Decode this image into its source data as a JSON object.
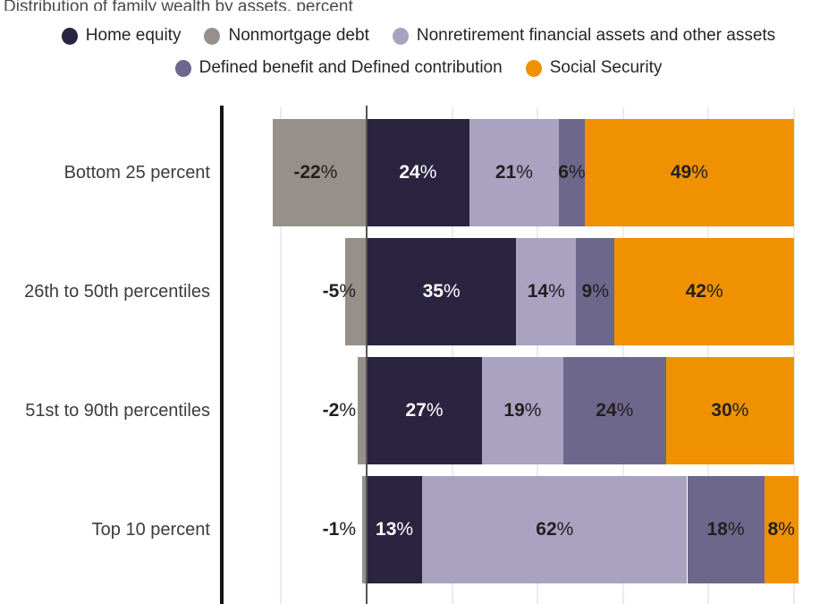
{
  "title": "Distribution of family wealth by assets, percent",
  "colors": {
    "home_equity": "#2a2440",
    "nonmortgage_debt": "#97908a",
    "nonretirement_assets": "#a9a3c1",
    "defined_benefit_contribution": "#6e678c",
    "social_security": "#ef9100",
    "axis": "#151515",
    "zero_line": "#565359",
    "gridline": "#ececec",
    "label_dark": "#231f20",
    "label_light": "#ffffff"
  },
  "legend": {
    "rows": [
      [
        {
          "label": "Home equity",
          "color_key": "home_equity"
        },
        {
          "label": "Nonmortgage debt",
          "color_key": "nonmortgage_debt"
        },
        {
          "label": "Nonretirement financial assets and other assets",
          "color_key": "nonretirement_assets"
        }
      ],
      [
        {
          "label": "Defined benefit and Defined contribution",
          "color_key": "defined_benefit_contribution"
        },
        {
          "label": "Social Security",
          "color_key": "social_security"
        }
      ]
    ]
  },
  "chart_data": {
    "type": "bar",
    "orientation": "horizontal-stacked",
    "title": "Distribution of family wealth by assets, percent",
    "categories": [
      "Bottom 25 percent",
      "26th to 50th percentiles",
      "51st to 90th percentiles",
      "Top 10 percent"
    ],
    "series": [
      {
        "name": "Nonmortgage debt",
        "color_key": "nonmortgage_debt",
        "values": [
          -22,
          -5,
          -2,
          -1
        ]
      },
      {
        "name": "Home equity",
        "color_key": "home_equity",
        "values": [
          24,
          35,
          27,
          13
        ]
      },
      {
        "name": "Nonretirement financial assets and other assets",
        "color_key": "nonretirement_assets",
        "values": [
          21,
          14,
          19,
          62
        ]
      },
      {
        "name": "Defined benefit and Defined contribution",
        "color_key": "defined_benefit_contribution",
        "values": [
          6,
          9,
          24,
          18
        ]
      },
      {
        "name": "Social Security",
        "color_key": "social_security",
        "values": [
          49,
          42,
          30,
          8
        ]
      }
    ],
    "value_suffix": "%",
    "xlim": [
      -34,
      102
    ],
    "gridlines": [
      -20,
      0,
      20,
      40,
      60,
      80,
      100
    ],
    "grid": true,
    "legend_position": "top"
  }
}
